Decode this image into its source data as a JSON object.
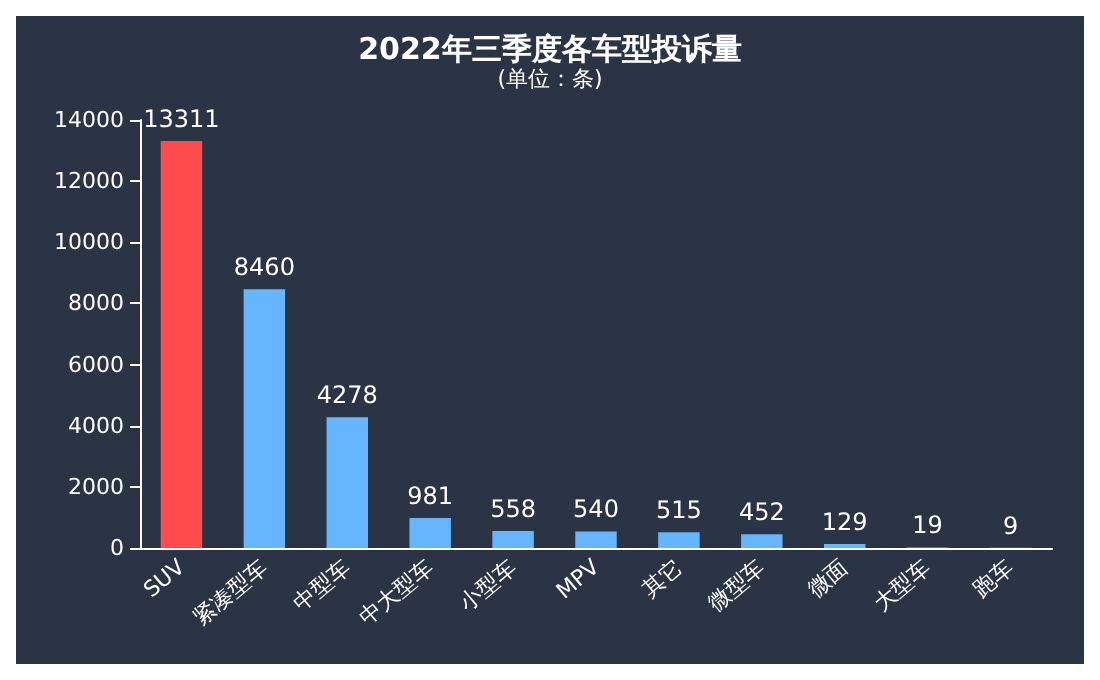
{
  "chart_data": {
    "type": "bar",
    "title": "2022年三季度各车型投诉量",
    "subtitle": "(单位：条)",
    "categories": [
      "SUV",
      "紧凑型车",
      "中型车",
      "中大型车",
      "小型车",
      "MPV",
      "其它",
      "微型车",
      "微面",
      "大型车",
      "跑车"
    ],
    "values": [
      13311,
      8460,
      4278,
      981,
      558,
      540,
      515,
      452,
      129,
      19,
      9
    ],
    "colors": [
      "#ff4b4b",
      "#66b5ff",
      "#66b5ff",
      "#66b5ff",
      "#66b5ff",
      "#66b5ff",
      "#66b5ff",
      "#66b5ff",
      "#66b5ff",
      "#66b5ff",
      "#66b5ff"
    ],
    "ylim": [
      0,
      14000
    ],
    "yticks": [
      0,
      2000,
      4000,
      6000,
      8000,
      10000,
      12000,
      14000
    ],
    "grid": false,
    "data_labels": true
  }
}
